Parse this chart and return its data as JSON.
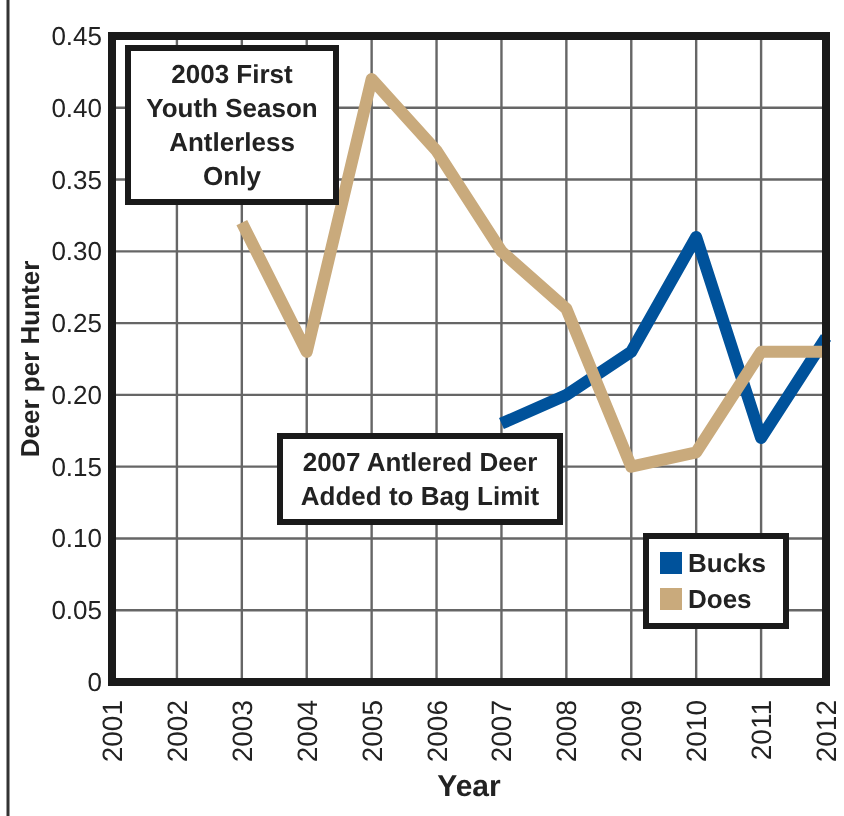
{
  "chart_data": {
    "type": "line",
    "xlabel": "Year",
    "ylabel": "Deer per Hunter",
    "x": [
      2003,
      2004,
      2005,
      2006,
      2007,
      2008,
      2009,
      2010,
      2011,
      2012
    ],
    "series": [
      {
        "name": "Bucks",
        "color": "#00529b",
        "values": [
          null,
          null,
          null,
          null,
          0.18,
          0.2,
          0.23,
          0.31,
          0.17,
          0.24
        ]
      },
      {
        "name": "Does",
        "color": "#c9aa7c",
        "values": [
          0.32,
          0.23,
          0.42,
          0.37,
          0.3,
          0.26,
          0.15,
          0.16,
          0.23,
          0.23
        ]
      }
    ],
    "xlim": [
      2001,
      2012
    ],
    "xticks": [
      2001,
      2002,
      2003,
      2004,
      2005,
      2006,
      2007,
      2008,
      2009,
      2010,
      2011,
      2012
    ],
    "ylim": [
      0,
      0.45
    ],
    "yticks": [
      0,
      0.05,
      {
        "value": 0.1,
        "label": "0.10"
      },
      0.15,
      {
        "value": 0.2,
        "label": "0.20"
      },
      0.25,
      {
        "value": 0.3,
        "label": "0.30"
      },
      0.35,
      {
        "value": 0.4,
        "label": "0.40"
      },
      0.45
    ],
    "grid": true,
    "legend": "bottom right",
    "annotations": [
      "2003 First Youth Season Antlerless Only",
      "2007 Antlered Deer Added to Bag Limit"
    ]
  }
}
